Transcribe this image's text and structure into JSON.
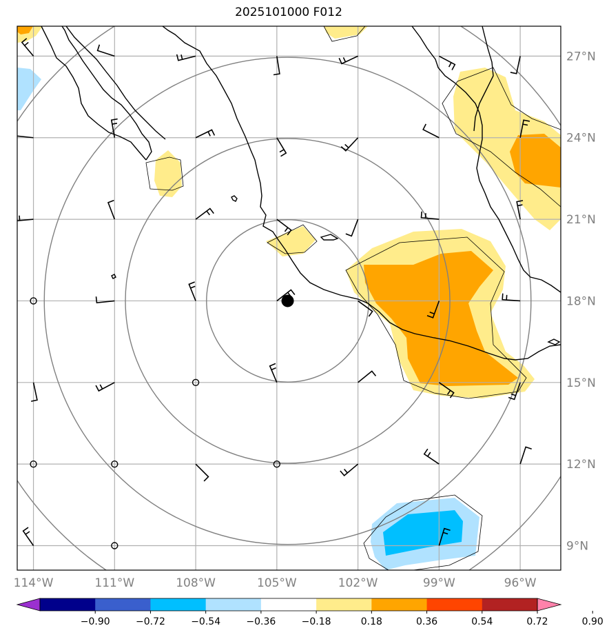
{
  "title": "2025101000 F012",
  "map": {
    "lon_labels": [
      "114°W",
      "111°W",
      "108°W",
      "105°W",
      "102°W",
      "99°W",
      "96°W"
    ],
    "lon_values": [
      -114,
      -111,
      -108,
      -105,
      -102,
      -99,
      -96
    ],
    "lat_labels": [
      "27°N",
      "24°N",
      "21°N",
      "18°N",
      "15°N",
      "12°N",
      "9°N"
    ],
    "lat_values": [
      27,
      24,
      21,
      18,
      15,
      12,
      9
    ],
    "lon_range": [
      -114.6,
      -94.5
    ],
    "lat_range": [
      8.1,
      28.1
    ],
    "center": {
      "lon": -104.6,
      "lat": 18.0
    },
    "range_rings_deg": [
      3,
      6,
      9,
      12
    ],
    "gridlines": true
  },
  "colorbar": {
    "tick_labels": [
      "−0.90",
      "−0.72",
      "−0.54",
      "−0.36",
      "−0.18",
      "0.18",
      "0.36",
      "0.54",
      "0.72",
      "0.90"
    ],
    "colors": [
      "#9b30d0",
      "#00008b",
      "#3a5fcd",
      "#00bfff",
      "#b0e2ff",
      "#ffffff",
      "#ffec8b",
      "#ffa500",
      "#ff4500",
      "#b22222",
      "#ff82ab"
    ],
    "extend": "both"
  },
  "colors": {
    "light_yellow": "#ffec8b",
    "orange": "#ffa500",
    "light_blue": "#b0e2ff",
    "deep_sky_blue": "#00bfff",
    "ring": "#808080",
    "grid": "#b0b0b0",
    "coast": "#000000",
    "axis_label": "#808080"
  },
  "wind_barbs": [
    {
      "lon": -114,
      "lat": 24
    },
    {
      "lon": -111,
      "lat": 24
    },
    {
      "lon": -108,
      "lat": 24
    },
    {
      "lon": -105,
      "lat": 27
    },
    {
      "lon": -102,
      "lat": 27
    },
    {
      "lon": -108,
      "lat": 27
    },
    {
      "lon": -111,
      "lat": 27
    },
    {
      "lon": -114,
      "lat": 27
    },
    {
      "lon": -99,
      "lat": 27
    },
    {
      "lon": -96,
      "lat": 27
    },
    {
      "lon": -105,
      "lat": 24
    },
    {
      "lon": -102,
      "lat": 24
    },
    {
      "lon": -99,
      "lat": 24
    },
    {
      "lon": -96,
      "lat": 24
    },
    {
      "lon": -114,
      "lat": 21
    },
    {
      "lon": -111,
      "lat": 21
    },
    {
      "lon": -108,
      "lat": 21
    },
    {
      "lon": -105,
      "lat": 21
    },
    {
      "lon": -102,
      "lat": 21
    },
    {
      "lon": -99,
      "lat": 21
    },
    {
      "lon": -96,
      "lat": 21
    },
    {
      "lon": -111,
      "lat": 18
    },
    {
      "lon": -108,
      "lat": 18
    },
    {
      "lon": -105,
      "lat": 18
    },
    {
      "lon": -102,
      "lat": 18
    },
    {
      "lon": -99,
      "lat": 18
    },
    {
      "lon": -96,
      "lat": 18
    },
    {
      "lon": -114,
      "lat": 15
    },
    {
      "lon": -111,
      "lat": 15
    },
    {
      "lon": -105,
      "lat": 15
    },
    {
      "lon": -102,
      "lat": 15
    },
    {
      "lon": -99,
      "lat": 15
    },
    {
      "lon": -96,
      "lat": 15
    },
    {
      "lon": -108,
      "lat": 12
    },
    {
      "lon": -102,
      "lat": 12
    },
    {
      "lon": -99,
      "lat": 12
    },
    {
      "lon": -96,
      "lat": 12
    },
    {
      "lon": -99,
      "lat": 9
    },
    {
      "lon": -114,
      "lat": 9
    }
  ],
  "calm_points": [
    {
      "lon": -114,
      "lat": 18
    },
    {
      "lon": -108,
      "lat": 15
    },
    {
      "lon": -114,
      "lat": 12
    },
    {
      "lon": -111,
      "lat": 12
    },
    {
      "lon": -105,
      "lat": 12
    },
    {
      "lon": -111,
      "lat": 9
    }
  ]
}
